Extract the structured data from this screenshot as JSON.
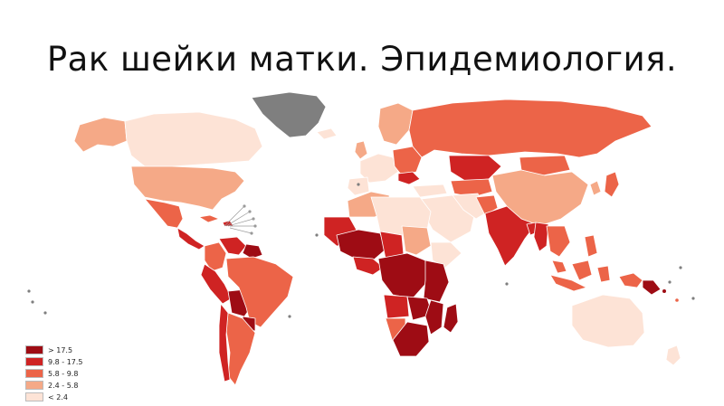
{
  "title": "Рак шейки матки. Эпидемиология.",
  "colors": {
    "c1": "#9e0c14",
    "c2": "#cf2323",
    "c3": "#ec6448",
    "c4": "#f5a987",
    "c5": "#fde3d6",
    "nodata": "#7f7f7f",
    "border": "#ffffff"
  },
  "legend": [
    {
      "label": "> 17.5",
      "class": "c1"
    },
    {
      "label": "9.8  -  17.5",
      "class": "c2"
    },
    {
      "label": "5.8  -  9.8",
      "class": "c3"
    },
    {
      "label": "2.4  -  5.8",
      "class": "c4"
    },
    {
      "label": "< 2.4",
      "class": "c5"
    }
  ]
}
